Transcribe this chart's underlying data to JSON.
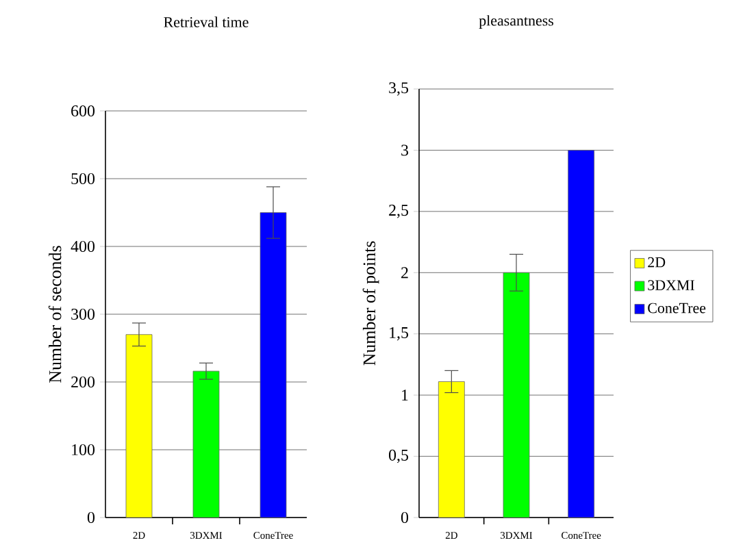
{
  "chart_data": [
    {
      "type": "bar",
      "title": "Retrieval time",
      "ylabel": "Number of seconds",
      "categories": [
        "2D",
        "3DXMI",
        "ConeTree"
      ],
      "series": [
        {
          "color": "#ffff00",
          "values": [
            270,
            null,
            null
          ],
          "errors": [
            17,
            null,
            null
          ]
        },
        {
          "color": "#00ff00",
          "values": [
            null,
            216,
            null
          ],
          "errors": [
            null,
            12,
            null
          ]
        },
        {
          "color": "#0000ff",
          "values": [
            null,
            null,
            450
          ],
          "errors": [
            null,
            null,
            38
          ]
        }
      ],
      "ylim": [
        0,
        600
      ],
      "yticks": [
        0,
        100,
        200,
        300,
        400,
        500,
        600
      ],
      "grid": "y"
    },
    {
      "type": "bar",
      "title": "pleasantness",
      "ylabel": "Number of points",
      "categories": [
        "2D",
        "3DXMI",
        "ConeTree"
      ],
      "series": [
        {
          "name": "2D",
          "color": "#ffff00",
          "values": [
            1.11,
            null,
            null
          ],
          "errors": [
            0.09,
            null,
            null
          ]
        },
        {
          "name": "3DXMI",
          "color": "#00ff00",
          "values": [
            null,
            2.0,
            null
          ],
          "errors": [
            null,
            0.15,
            null
          ]
        },
        {
          "name": "ConeTree",
          "color": "#0000ff",
          "values": [
            null,
            null,
            3.0
          ]
        }
      ],
      "ylim": [
        0,
        3.5
      ],
      "yticks": [
        0,
        {
          "value": 0.5,
          "label": "0,5"
        },
        1,
        {
          "value": 1.5,
          "label": "1,5"
        },
        2,
        {
          "value": 2.5,
          "label": "2,5"
        },
        3,
        {
          "value": 3.5,
          "label": "3,5"
        }
      ],
      "grid": "y",
      "legend": "right"
    }
  ]
}
